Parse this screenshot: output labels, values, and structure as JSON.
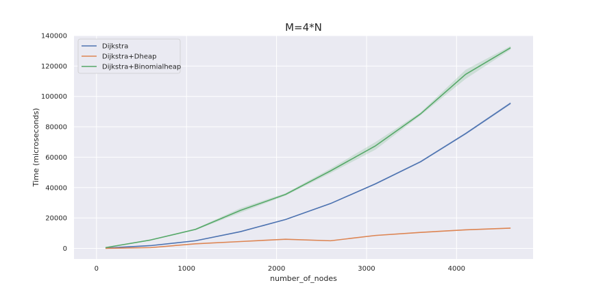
{
  "chart_data": {
    "type": "line",
    "title": "M=4*N",
    "xlabel": "number_of_nodes",
    "ylabel": "Time (microseconds)",
    "xlim": [
      -250,
      4850
    ],
    "ylim": [
      -7000,
      140000
    ],
    "xticks": [
      0,
      1000,
      2000,
      3000,
      4000
    ],
    "yticks": [
      0,
      20000,
      40000,
      60000,
      80000,
      100000,
      120000,
      140000
    ],
    "grid": true,
    "legend_position": "top-left",
    "x": [
      100,
      600,
      1100,
      1600,
      2100,
      2600,
      3100,
      3600,
      4100,
      4600
    ],
    "series": [
      {
        "name": "Dijkstra",
        "color": "#4c72b0",
        "values": [
          200,
          1800,
          5000,
          11000,
          19000,
          29500,
          42500,
          57000,
          75500,
          95500
        ],
        "band": [
          300,
          200,
          200,
          300,
          300,
          400,
          500,
          600,
          700,
          800
        ]
      },
      {
        "name": "Dijkstra+Dheap",
        "color": "#dd8452",
        "values": [
          0,
          500,
          3000,
          4500,
          6000,
          5000,
          8500,
          10500,
          12200,
          13300
        ],
        "band": [
          100,
          100,
          200,
          200,
          200,
          200,
          300,
          300,
          300,
          300
        ]
      },
      {
        "name": "Dijkstra+Binomialheap",
        "color": "#55a868",
        "values": [
          500,
          5500,
          12500,
          25000,
          35500,
          51000,
          67500,
          88500,
          114500,
          132000
        ],
        "band": [
          300,
          300,
          500,
          1500,
          800,
          1500,
          2500,
          1000,
          3000,
          1200
        ]
      }
    ]
  }
}
